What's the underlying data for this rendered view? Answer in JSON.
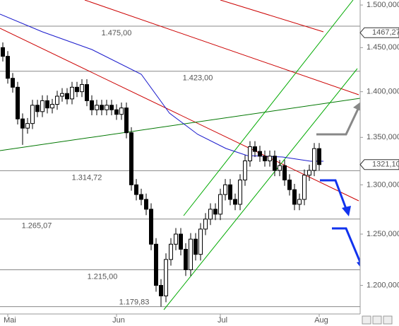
{
  "chart_data": {
    "type": "candlestick",
    "categories": [
      null,
      "Mai",
      null,
      null,
      null,
      null,
      null,
      null,
      null,
      null,
      null,
      null,
      null,
      null,
      null,
      null,
      null,
      null,
      null,
      null,
      null,
      null,
      null,
      "Jun",
      null,
      null,
      null,
      null,
      null,
      null,
      null,
      null,
      null,
      null,
      null,
      null,
      null,
      null,
      null,
      null,
      null,
      null,
      null,
      null,
      "Jul",
      null,
      null,
      null,
      null,
      null,
      null,
      null,
      null,
      null,
      null,
      null,
      null,
      null,
      null,
      null,
      null,
      null,
      null,
      null,
      "Aug"
    ],
    "open": [
      1450,
      1440,
      1415,
      1405,
      1370,
      1360,
      1365,
      1385,
      1378,
      1390,
      1382,
      1386,
      1395,
      1398,
      1392,
      1405,
      1400,
      1408,
      1390,
      1380,
      1385,
      1380,
      1385,
      1380,
      1375,
      1382,
      1355,
      1300,
      1290,
      1285,
      1275,
      1240,
      1200,
      1190,
      1225,
      1240,
      1250,
      1235,
      1215,
      1245,
      1230,
      1255,
      1265,
      1275,
      1270,
      1290,
      1300,
      1285,
      1280,
      1305,
      1325,
      1340,
      1335,
      1330,
      1325,
      1330,
      1315,
      1320,
      1305,
      1295,
      1280,
      1285,
      1310,
      1315,
      1338
    ],
    "high": [
      1456,
      1446,
      1421,
      1411,
      1376,
      1371,
      1391,
      1391,
      1396,
      1396,
      1392,
      1401,
      1404,
      1404,
      1411,
      1411,
      1414,
      1414,
      1396,
      1391,
      1391,
      1391,
      1391,
      1386,
      1388,
      1388,
      1361,
      1306,
      1296,
      1291,
      1281,
      1246,
      1206,
      1231,
      1246,
      1256,
      1256,
      1241,
      1251,
      1251,
      1261,
      1271,
      1281,
      1281,
      1296,
      1306,
      1306,
      1291,
      1311,
      1331,
      1346,
      1346,
      1341,
      1336,
      1336,
      1336,
      1326,
      1326,
      1311,
      1301,
      1291,
      1316,
      1321,
      1344,
      1344
    ],
    "low": [
      1434,
      1409,
      1399,
      1364,
      1342,
      1354,
      1359,
      1372,
      1372,
      1376,
      1376,
      1380,
      1389,
      1386,
      1386,
      1394,
      1394,
      1384,
      1374,
      1374,
      1374,
      1374,
      1374,
      1369,
      1369,
      1349,
      1294,
      1284,
      1279,
      1269,
      1234,
      1194,
      1179.83,
      1184,
      1219,
      1234,
      1229,
      1209,
      1209,
      1224,
      1224,
      1249,
      1259,
      1264,
      1264,
      1284,
      1279,
      1274,
      1274,
      1299,
      1319,
      1329,
      1324,
      1319,
      1319,
      1309,
      1309,
      1299,
      1289,
      1274,
      1274,
      1279,
      1304,
      1309,
      1315
    ],
    "close": [
      1440,
      1415,
      1405,
      1370,
      1360,
      1365,
      1385,
      1378,
      1390,
      1382,
      1386,
      1395,
      1398,
      1392,
      1405,
      1400,
      1408,
      1390,
      1380,
      1385,
      1380,
      1385,
      1380,
      1375,
      1382,
      1355,
      1300,
      1290,
      1285,
      1275,
      1240,
      1200,
      1190,
      1225,
      1240,
      1250,
      1235,
      1215,
      1245,
      1230,
      1255,
      1265,
      1275,
      1270,
      1290,
      1300,
      1285,
      1280,
      1305,
      1325,
      1340,
      1335,
      1330,
      1325,
      1330,
      1315,
      1320,
      1305,
      1295,
      1280,
      1285,
      1310,
      1315,
      1338,
      1321.1
    ],
    "ylim": [
      1173,
      1506
    ],
    "log_scale": true,
    "yticks": [
      {
        "value": 1200,
        "label": "1.200,000"
      },
      {
        "value": 1250,
        "label": "1.250,000"
      },
      {
        "value": 1300,
        "label": "1.300,000"
      },
      {
        "value": 1350,
        "label": "1.350,000"
      },
      {
        "value": 1400,
        "label": "1.400,000"
      },
      {
        "value": 1450,
        "label": "1.450,000"
      },
      {
        "value": 1500,
        "label": "1.500,000"
      }
    ],
    "levels": [
      {
        "value": 1475,
        "label": "1.475,00"
      },
      {
        "value": 1423,
        "label": "1.423,00"
      },
      {
        "value": 1314.72,
        "label": "1.314,72"
      },
      {
        "value": 1265.07,
        "label": "1.265,07"
      },
      {
        "value": 1215,
        "label": "1.215,00"
      },
      {
        "value": 1179.83,
        "label": "1.179,83"
      }
    ],
    "price_markers": [
      {
        "value": 1467.27,
        "label": "1467,27"
      },
      {
        "value": 1321.1,
        "label": "1321,10"
      }
    ],
    "up_color": "#ffffff",
    "down_color": "#000000"
  }
}
